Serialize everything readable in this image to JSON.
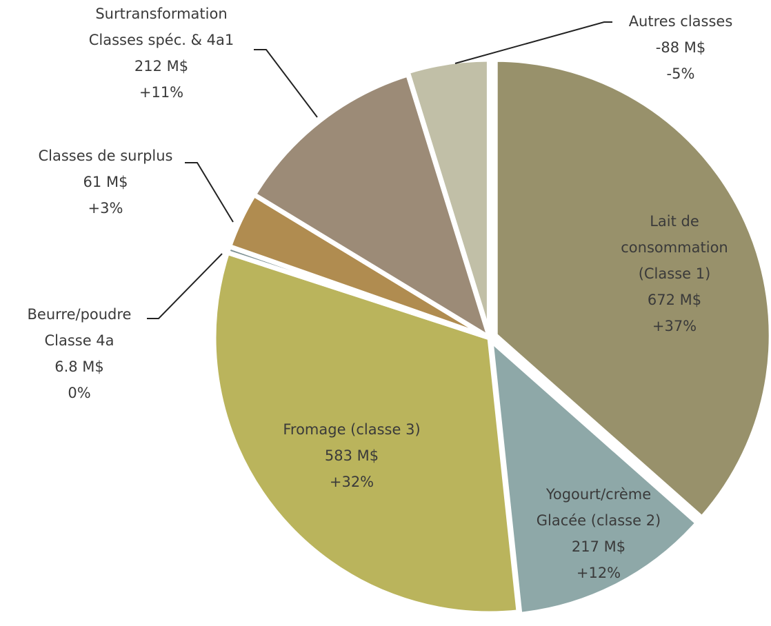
{
  "chart_data": {
    "type": "pie",
    "categories": [
      [
        "Lait de",
        "consommation",
        "(Classe 1)"
      ],
      [
        "Yogourt/crème",
        "Glacée (classe 2)"
      ],
      [
        "Fromage (classe 3)"
      ],
      [
        "Beurre/poudre",
        "Classe 4a"
      ],
      [
        "Classes de surplus"
      ],
      [
        "Surtransformation",
        "Classes spéc. & 4a1"
      ],
      [
        "Autres classes"
      ]
    ],
    "values": [
      672,
      217,
      583,
      6.8,
      61,
      212,
      -88
    ],
    "value_labels": [
      "672 M$",
      "217 M$",
      "583 M$",
      "6.8 M$",
      "61 M$",
      "212 M$",
      "-88 M$"
    ],
    "percents": [
      37,
      12,
      32,
      0,
      3,
      11,
      -5
    ],
    "percent_labels": [
      "+37%",
      "+12%",
      "+32%",
      "0%",
      "+3%",
      "+11%",
      "-5%"
    ],
    "colors": [
      "#98916b",
      "#8ea8a8",
      "#bab45c",
      "#7f9295",
      "#b08c50",
      "#9c8b77",
      "#c1bfa7"
    ]
  }
}
